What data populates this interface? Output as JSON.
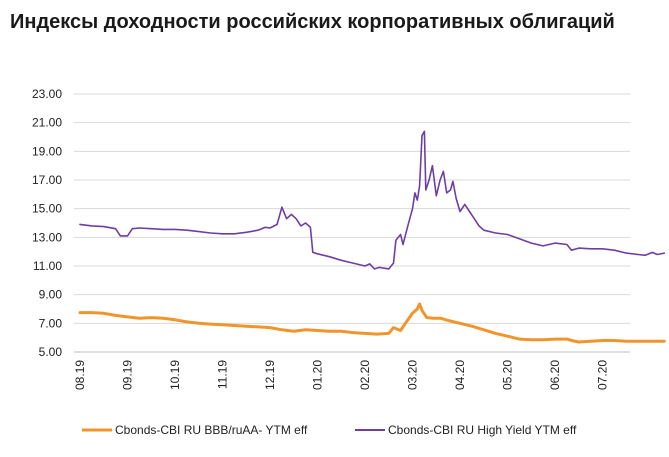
{
  "title": "Индексы доходности российских корпоративных облигаций",
  "colors": {
    "series1": "#F0952B",
    "series2": "#6E3FA3",
    "grid": "#d9d9d9",
    "axis": "#bfbfbf"
  },
  "chart_data": {
    "type": "line",
    "title": "Индексы доходности российских корпоративных облигаций",
    "xlabel": "",
    "ylabel": "",
    "ylim": [
      5.0,
      23.0
    ],
    "yticks": [
      "5.00",
      "7.00",
      "9.00",
      "11.00",
      "13.00",
      "15.00",
      "17.00",
      "19.00",
      "21.00",
      "23.00"
    ],
    "xticks": [
      "08.19",
      "09.19",
      "10.19",
      "11.19",
      "12.19",
      "01.20",
      "02.20",
      "03.20",
      "04.20",
      "05.20",
      "06.20",
      "07.20"
    ],
    "grid": true,
    "legend_position": "bottom",
    "series": [
      {
        "name": "Cbonds-CBI RU BBB/ruAA- YTM eff",
        "color": "#F0952B",
        "points": [
          [
            0.0,
            7.75
          ],
          [
            0.25,
            7.75
          ],
          [
            0.5,
            7.7
          ],
          [
            0.75,
            7.55
          ],
          [
            1.0,
            7.45
          ],
          [
            1.25,
            7.35
          ],
          [
            1.5,
            7.4
          ],
          [
            1.75,
            7.35
          ],
          [
            2.0,
            7.25
          ],
          [
            2.25,
            7.1
          ],
          [
            2.5,
            7.0
          ],
          [
            2.75,
            6.95
          ],
          [
            3.0,
            6.9
          ],
          [
            3.25,
            6.85
          ],
          [
            3.5,
            6.8
          ],
          [
            3.75,
            6.75
          ],
          [
            4.0,
            6.7
          ],
          [
            4.25,
            6.55
          ],
          [
            4.5,
            6.45
          ],
          [
            4.75,
            6.55
          ],
          [
            5.0,
            6.5
          ],
          [
            5.25,
            6.45
          ],
          [
            5.5,
            6.45
          ],
          [
            5.75,
            6.35
          ],
          [
            6.0,
            6.3
          ],
          [
            6.25,
            6.25
          ],
          [
            6.5,
            6.3
          ],
          [
            6.6,
            6.7
          ],
          [
            6.75,
            6.5
          ],
          [
            6.85,
            7.0
          ],
          [
            7.0,
            7.7
          ],
          [
            7.1,
            8.0
          ],
          [
            7.15,
            8.35
          ],
          [
            7.2,
            7.9
          ],
          [
            7.3,
            7.4
          ],
          [
            7.45,
            7.35
          ],
          [
            7.6,
            7.35
          ],
          [
            7.75,
            7.2
          ],
          [
            8.0,
            7.0
          ],
          [
            8.25,
            6.8
          ],
          [
            8.5,
            6.55
          ],
          [
            8.75,
            6.3
          ],
          [
            9.0,
            6.1
          ],
          [
            9.25,
            5.9
          ],
          [
            9.5,
            5.85
          ],
          [
            9.75,
            5.85
          ],
          [
            10.0,
            5.9
          ],
          [
            10.25,
            5.9
          ],
          [
            10.35,
            5.8
          ],
          [
            10.5,
            5.7
          ],
          [
            10.75,
            5.75
          ],
          [
            11.0,
            5.8
          ],
          [
            11.25,
            5.8
          ],
          [
            11.5,
            5.75
          ],
          [
            11.75,
            5.75
          ],
          [
            12.0,
            5.75
          ],
          [
            12.3,
            5.75
          ]
        ]
      },
      {
        "name": "Cbonds-CBI RU High Yield YTM eff",
        "color": "#6E3FA3",
        "points": [
          [
            0.0,
            13.9
          ],
          [
            0.25,
            13.8
          ],
          [
            0.5,
            13.75
          ],
          [
            0.75,
            13.6
          ],
          [
            0.85,
            13.1
          ],
          [
            1.0,
            13.1
          ],
          [
            1.1,
            13.6
          ],
          [
            1.25,
            13.65
          ],
          [
            1.5,
            13.6
          ],
          [
            1.75,
            13.55
          ],
          [
            2.0,
            13.55
          ],
          [
            2.25,
            13.5
          ],
          [
            2.5,
            13.4
          ],
          [
            2.75,
            13.3
          ],
          [
            3.0,
            13.25
          ],
          [
            3.25,
            13.25
          ],
          [
            3.5,
            13.35
          ],
          [
            3.75,
            13.5
          ],
          [
            3.9,
            13.7
          ],
          [
            4.0,
            13.65
          ],
          [
            4.15,
            13.9
          ],
          [
            4.25,
            15.1
          ],
          [
            4.35,
            14.3
          ],
          [
            4.45,
            14.6
          ],
          [
            4.55,
            14.3
          ],
          [
            4.65,
            13.8
          ],
          [
            4.75,
            14.0
          ],
          [
            4.85,
            13.7
          ],
          [
            4.9,
            11.95
          ],
          [
            5.0,
            11.85
          ],
          [
            5.25,
            11.65
          ],
          [
            5.5,
            11.4
          ],
          [
            5.75,
            11.2
          ],
          [
            6.0,
            11.0
          ],
          [
            6.1,
            11.15
          ],
          [
            6.2,
            10.8
          ],
          [
            6.3,
            10.9
          ],
          [
            6.5,
            10.8
          ],
          [
            6.6,
            11.2
          ],
          [
            6.65,
            12.8
          ],
          [
            6.75,
            13.2
          ],
          [
            6.8,
            12.5
          ],
          [
            6.9,
            13.8
          ],
          [
            7.0,
            15.0
          ],
          [
            7.05,
            16.1
          ],
          [
            7.1,
            15.6
          ],
          [
            7.15,
            16.6
          ],
          [
            7.2,
            20.1
          ],
          [
            7.25,
            20.4
          ],
          [
            7.28,
            16.3
          ],
          [
            7.35,
            17.0
          ],
          [
            7.42,
            18.0
          ],
          [
            7.5,
            15.9
          ],
          [
            7.58,
            17.0
          ],
          [
            7.65,
            17.6
          ],
          [
            7.72,
            16.1
          ],
          [
            7.8,
            16.3
          ],
          [
            7.85,
            16.9
          ],
          [
            7.92,
            15.7
          ],
          [
            8.0,
            14.8
          ],
          [
            8.1,
            15.3
          ],
          [
            8.2,
            14.8
          ],
          [
            8.3,
            14.3
          ],
          [
            8.4,
            13.8
          ],
          [
            8.5,
            13.5
          ],
          [
            8.75,
            13.3
          ],
          [
            9.0,
            13.2
          ],
          [
            9.25,
            12.9
          ],
          [
            9.5,
            12.6
          ],
          [
            9.75,
            12.4
          ],
          [
            10.0,
            12.6
          ],
          [
            10.25,
            12.5
          ],
          [
            10.35,
            12.1
          ],
          [
            10.5,
            12.25
          ],
          [
            10.75,
            12.2
          ],
          [
            11.0,
            12.2
          ],
          [
            11.25,
            12.1
          ],
          [
            11.5,
            11.9
          ],
          [
            11.75,
            11.8
          ],
          [
            11.9,
            11.75
          ],
          [
            12.05,
            11.95
          ],
          [
            12.15,
            11.8
          ],
          [
            12.3,
            11.9
          ]
        ]
      }
    ]
  }
}
